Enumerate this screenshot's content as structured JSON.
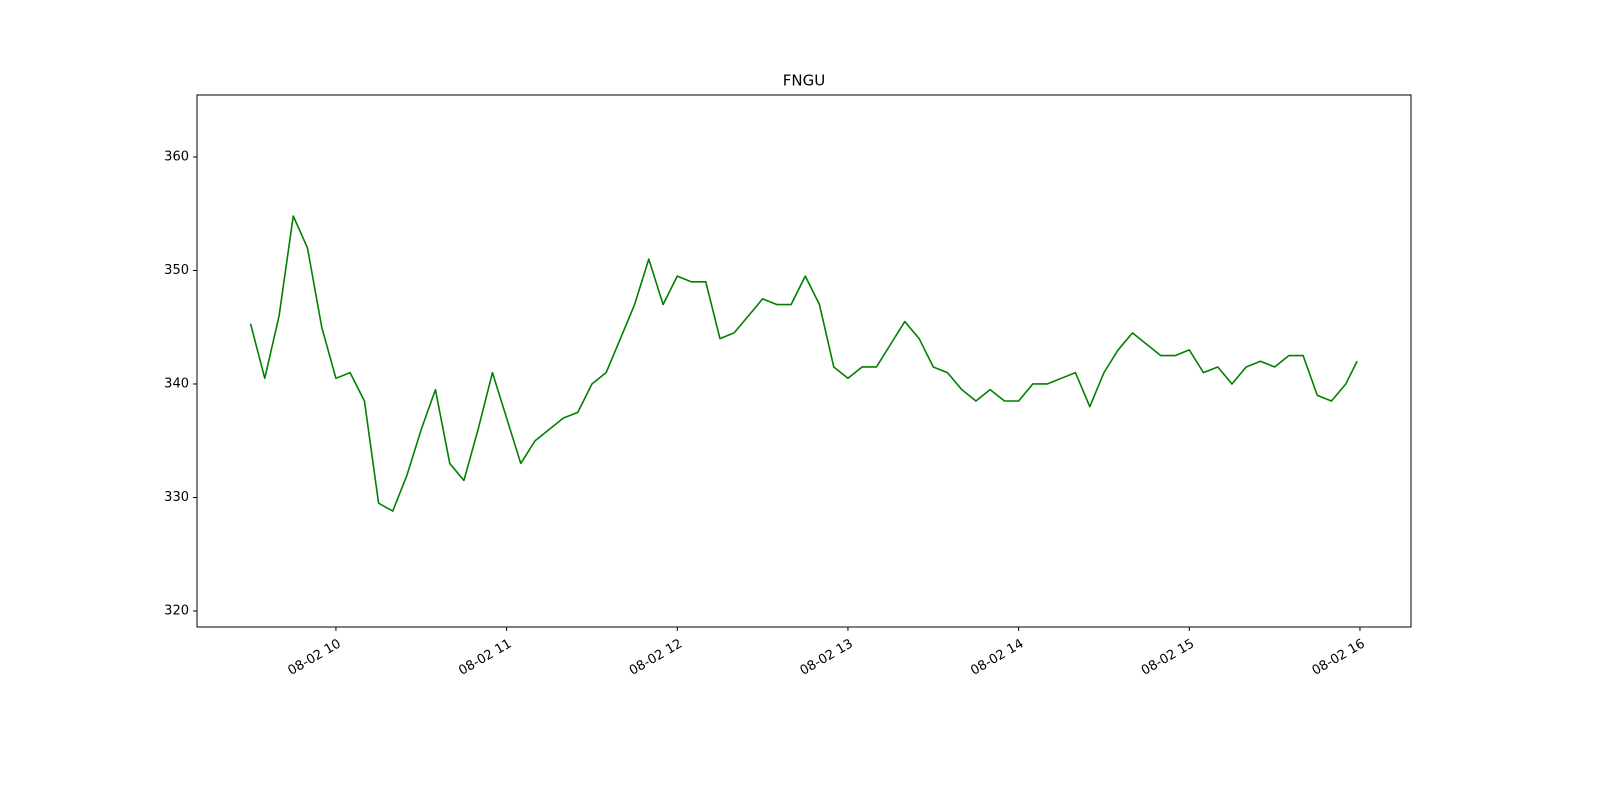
{
  "chart_data": {
    "type": "line",
    "title": "FNGU",
    "x": [
      9.5,
      9.583,
      9.667,
      9.75,
      9.833,
      9.917,
      10,
      10.083,
      10.167,
      10.25,
      10.333,
      10.417,
      10.5,
      10.583,
      10.667,
      10.75,
      10.833,
      10.917,
      11,
      11.083,
      11.167,
      11.25,
      11.333,
      11.417,
      11.5,
      11.583,
      11.667,
      11.75,
      11.833,
      11.917,
      12,
      12.083,
      12.167,
      12.25,
      12.333,
      12.417,
      12.5,
      12.583,
      12.667,
      12.75,
      12.833,
      12.917,
      13,
      13.083,
      13.167,
      13.25,
      13.333,
      13.417,
      13.5,
      13.583,
      13.667,
      13.75,
      13.833,
      13.917,
      14,
      14.083,
      14.167,
      14.25,
      14.333,
      14.417,
      14.5,
      14.583,
      14.667,
      14.75,
      14.833,
      14.917,
      15,
      15.083,
      15.167,
      15.25,
      15.333,
      15.417,
      15.5,
      15.583,
      15.667,
      15.75,
      15.833,
      15.917,
      15.983
    ],
    "series": [
      {
        "name": "FNGU",
        "color": "#008000",
        "values": [
          345.3,
          340.5,
          346,
          354.8,
          352,
          345,
          340.5,
          341,
          338.5,
          329.5,
          328.8,
          332,
          336,
          339.5,
          333,
          331.5,
          336,
          341,
          337,
          333,
          335,
          336,
          337,
          337.5,
          340,
          341,
          344,
          347,
          351,
          347,
          349.5,
          349,
          349,
          344,
          344.5,
          346,
          347.5,
          347,
          347,
          349.5,
          347,
          341.5,
          340.5,
          341.5,
          341.5,
          343.5,
          345.5,
          344,
          341.5,
          341,
          339.5,
          338.5,
          339.5,
          338.5,
          338.5,
          340,
          340,
          340.5,
          341,
          338,
          341,
          343,
          344.5,
          343.5,
          342.5,
          342.5,
          343,
          341,
          341.5,
          340,
          341.5,
          342,
          341.5,
          342.5,
          342.5,
          339,
          338.5,
          340,
          342
        ]
      }
    ],
    "xlim": [
      9.186,
      16.299
    ],
    "ylim": [
      318.59,
      365.46
    ],
    "xticks": [
      {
        "value": 10,
        "label": "08-02 10"
      },
      {
        "value": 11,
        "label": "08-02 11"
      },
      {
        "value": 12,
        "label": "08-02 12"
      },
      {
        "value": 13,
        "label": "08-02 13"
      },
      {
        "value": 14,
        "label": "08-02 14"
      },
      {
        "value": 15,
        "label": "08-02 15"
      },
      {
        "value": 16,
        "label": "08-02 16"
      }
    ],
    "yticks": [
      320,
      330,
      340,
      350,
      360
    ]
  }
}
